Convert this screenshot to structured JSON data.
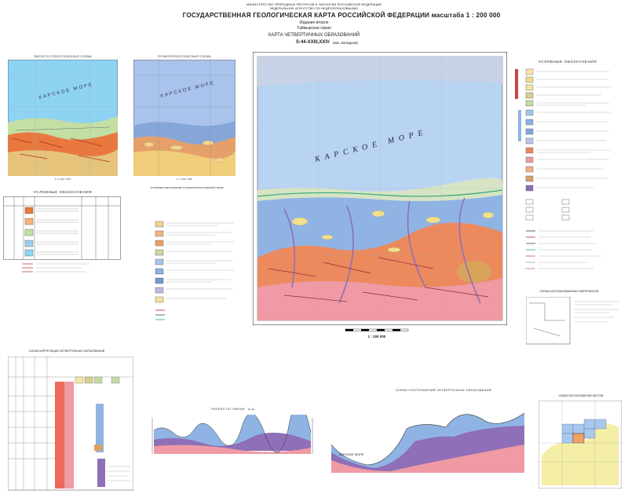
{
  "header": {
    "ministry": "МИНИСТЕРСТВО ПРИРОДНЫХ РЕСУРСОВ И ЭКОЛОГИИ РОССИЙСКОЙ ФЕДЕРАЦИИ",
    "agency": "ФЕДЕРАЛЬНОЕ АГЕНТСТВО ПО НЕДРОПОЛЬЗОВАНИЮ",
    "title": "ГОСУДАРСТВЕННАЯ ГЕОЛОГИЧЕСКАЯ КАРТА РОССИЙСКОЙ ФЕДЕРАЦИИ масштаба 1 : 200 000",
    "edition": "Издание второе",
    "series": "Таймырская серия",
    "map_type": "КАРТА ЧЕТВЕРТИЧНЫХ ОБРАЗОВАНИЙ",
    "sheet": "S-44-XXIII,XXIV",
    "sheet_note": "(мм. Западная)"
  },
  "left_map": {
    "title": "ЭКОЛОГО-ГЕОЛОГИЧЕСКАЯ СХЕМА",
    "legend_title": "УСЛОВНЫЕ ОБОЗНАЧЕНИЯ",
    "scale": "1:1 000 000"
  },
  "geomorph_map": {
    "title": "ГЕОМОРФОЛОГИЧЕСКАЯ СХЕМА",
    "legend_title": "УСЛОВНЫЕ ОБОЗНАЧЕНИЯ К ГЕОМОРФОЛОГИЧЕСКОЙ СХЕМЕ",
    "scale": "1:1 000 000"
  },
  "main_map": {
    "sea_label": "КАРСКОЕ МОРЕ",
    "scale": "1 : 200 000"
  },
  "legend": {
    "title": "УСЛОВНЫЕ ОБОЗНАЧЕНИЯ",
    "sub_title": "СХЕМА ИСПОЛЬЗОВАННЫХ МАТЕРИАЛОВ"
  },
  "correlation": {
    "title": "СХЕМА КОРРЕЛЯЦИИ ЧЕТВЕРТИЧНЫХ ОБРАЗОВАНИЙ"
  },
  "profile": {
    "title": "РАЗРЕЗ ПО ЛИНИИ",
    "line_id": "А₁-А₂"
  },
  "relations": {
    "title": "СХЕМА СООТНОШЕНИЙ ЧЕТВЕРТИЧНЫХ ОБРАЗОВАНИЙ",
    "sea_label": "КАРСКОЕ МОРЕ"
  },
  "index_map": {
    "title": "СХЕМА РАСПОЛОЖЕНИЯ ЛИСТОВ"
  },
  "colors": {
    "sea": "#8fb4e4",
    "sea_light": "#b9d3f2",
    "coast": "#d8e6c3",
    "orange": "#ec8a5e",
    "pink": "#ef9aa4",
    "purple": "#8f6fb7",
    "yellow": "#f0e08a",
    "green": "#b8d39b"
  }
}
